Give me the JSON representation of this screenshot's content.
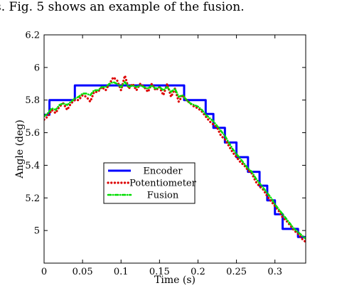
{
  "caption": "s. Fig. 5 shows an example of the fusion.",
  "chart_data": {
    "type": "line",
    "title": "",
    "xlabel": "Time (s)",
    "ylabel": "Angle (deg)",
    "xlim": [
      0,
      0.34
    ],
    "ylim": [
      4.8,
      6.2
    ],
    "xticks": [
      0,
      0.05,
      0.1,
      0.15,
      0.2,
      0.25,
      0.3
    ],
    "xtick_labels": [
      "0",
      "0.05",
      "0.1",
      "0.15",
      "0.2",
      "0.25",
      "0.3"
    ],
    "yticks": [
      5,
      5.2,
      5.4,
      5.6,
      5.8,
      6,
      6.2
    ],
    "ytick_labels": [
      "5",
      "5.2",
      "5.4",
      "5.6",
      "5.8",
      "6",
      "6.2"
    ],
    "grid": false,
    "legend_position": "center-left",
    "series": [
      {
        "name": "Encoder",
        "color": "#0000ff",
        "style": "solid",
        "x": [
          0,
          0.007,
          0.007,
          0.04,
          0.04,
          0.182,
          0.182,
          0.21,
          0.21,
          0.22,
          0.22,
          0.235,
          0.235,
          0.25,
          0.25,
          0.265,
          0.265,
          0.28,
          0.28,
          0.29,
          0.29,
          0.3,
          0.3,
          0.31,
          0.31,
          0.318,
          0.318,
          0.33,
          0.33,
          0.34
        ],
        "y": [
          5.71,
          5.71,
          5.8,
          5.8,
          5.89,
          5.89,
          5.8,
          5.8,
          5.715,
          5.715,
          5.63,
          5.63,
          5.54,
          5.54,
          5.45,
          5.45,
          5.36,
          5.36,
          5.275,
          5.275,
          5.185,
          5.185,
          5.1,
          5.1,
          5.01,
          5.01,
          5.01,
          5.01,
          4.96,
          4.96
        ]
      },
      {
        "name": "Potentiometer",
        "color": "#dd0000",
        "style": "dotted",
        "x": [
          0,
          0.005,
          0.01,
          0.015,
          0.02,
          0.025,
          0.03,
          0.035,
          0.04,
          0.045,
          0.05,
          0.055,
          0.06,
          0.065,
          0.07,
          0.075,
          0.08,
          0.085,
          0.09,
          0.095,
          0.1,
          0.105,
          0.11,
          0.115,
          0.12,
          0.125,
          0.13,
          0.135,
          0.14,
          0.145,
          0.15,
          0.155,
          0.16,
          0.165,
          0.17,
          0.175,
          0.18,
          0.185,
          0.19,
          0.195,
          0.2,
          0.205,
          0.21,
          0.215,
          0.22,
          0.225,
          0.23,
          0.235,
          0.24,
          0.245,
          0.25,
          0.255,
          0.26,
          0.265,
          0.27,
          0.275,
          0.28,
          0.285,
          0.29,
          0.295,
          0.3,
          0.305,
          0.31,
          0.315,
          0.32,
          0.325,
          0.33,
          0.335,
          0.34
        ],
        "y": [
          5.68,
          5.7,
          5.74,
          5.72,
          5.76,
          5.78,
          5.74,
          5.78,
          5.8,
          5.8,
          5.83,
          5.82,
          5.79,
          5.85,
          5.85,
          5.88,
          5.86,
          5.9,
          5.94,
          5.92,
          5.86,
          5.95,
          5.87,
          5.9,
          5.86,
          5.9,
          5.88,
          5.85,
          5.9,
          5.86,
          5.88,
          5.83,
          5.9,
          5.82,
          5.87,
          5.79,
          5.83,
          5.8,
          5.78,
          5.76,
          5.75,
          5.73,
          5.7,
          5.67,
          5.65,
          5.63,
          5.58,
          5.56,
          5.52,
          5.48,
          5.45,
          5.42,
          5.4,
          5.37,
          5.35,
          5.3,
          5.27,
          5.25,
          5.21,
          5.18,
          5.15,
          5.12,
          5.08,
          5.06,
          5.03,
          5.0,
          4.98,
          4.95,
          4.93
        ]
      },
      {
        "name": "Fusion",
        "color": "#00dd00",
        "style": "dashdot",
        "x": [
          0,
          0.005,
          0.01,
          0.015,
          0.02,
          0.025,
          0.03,
          0.035,
          0.04,
          0.045,
          0.05,
          0.055,
          0.06,
          0.065,
          0.07,
          0.075,
          0.08,
          0.085,
          0.09,
          0.095,
          0.1,
          0.105,
          0.11,
          0.115,
          0.12,
          0.125,
          0.13,
          0.135,
          0.14,
          0.145,
          0.15,
          0.155,
          0.16,
          0.165,
          0.17,
          0.175,
          0.18,
          0.185,
          0.19,
          0.195,
          0.2,
          0.205,
          0.21,
          0.215,
          0.22,
          0.225,
          0.23,
          0.235,
          0.24,
          0.245,
          0.25,
          0.255,
          0.26,
          0.265,
          0.27,
          0.275,
          0.28,
          0.285,
          0.29,
          0.295,
          0.3,
          0.305,
          0.31,
          0.315,
          0.32,
          0.325,
          0.33,
          0.335,
          0.34
        ],
        "y": [
          5.7,
          5.72,
          5.75,
          5.74,
          5.77,
          5.78,
          5.77,
          5.79,
          5.81,
          5.82,
          5.84,
          5.84,
          5.83,
          5.86,
          5.86,
          5.88,
          5.88,
          5.9,
          5.91,
          5.9,
          5.88,
          5.91,
          5.88,
          5.89,
          5.88,
          5.89,
          5.88,
          5.87,
          5.89,
          5.87,
          5.88,
          5.86,
          5.88,
          5.85,
          5.87,
          5.82,
          5.83,
          5.8,
          5.78,
          5.77,
          5.76,
          5.74,
          5.71,
          5.69,
          5.67,
          5.64,
          5.61,
          5.58,
          5.54,
          5.5,
          5.47,
          5.44,
          5.41,
          5.38,
          5.36,
          5.32,
          5.29,
          5.26,
          5.23,
          5.2,
          5.16,
          5.13,
          5.1,
          5.07,
          5.04,
          5.01,
          4.99,
          4.97,
          4.95
        ]
      }
    ]
  }
}
